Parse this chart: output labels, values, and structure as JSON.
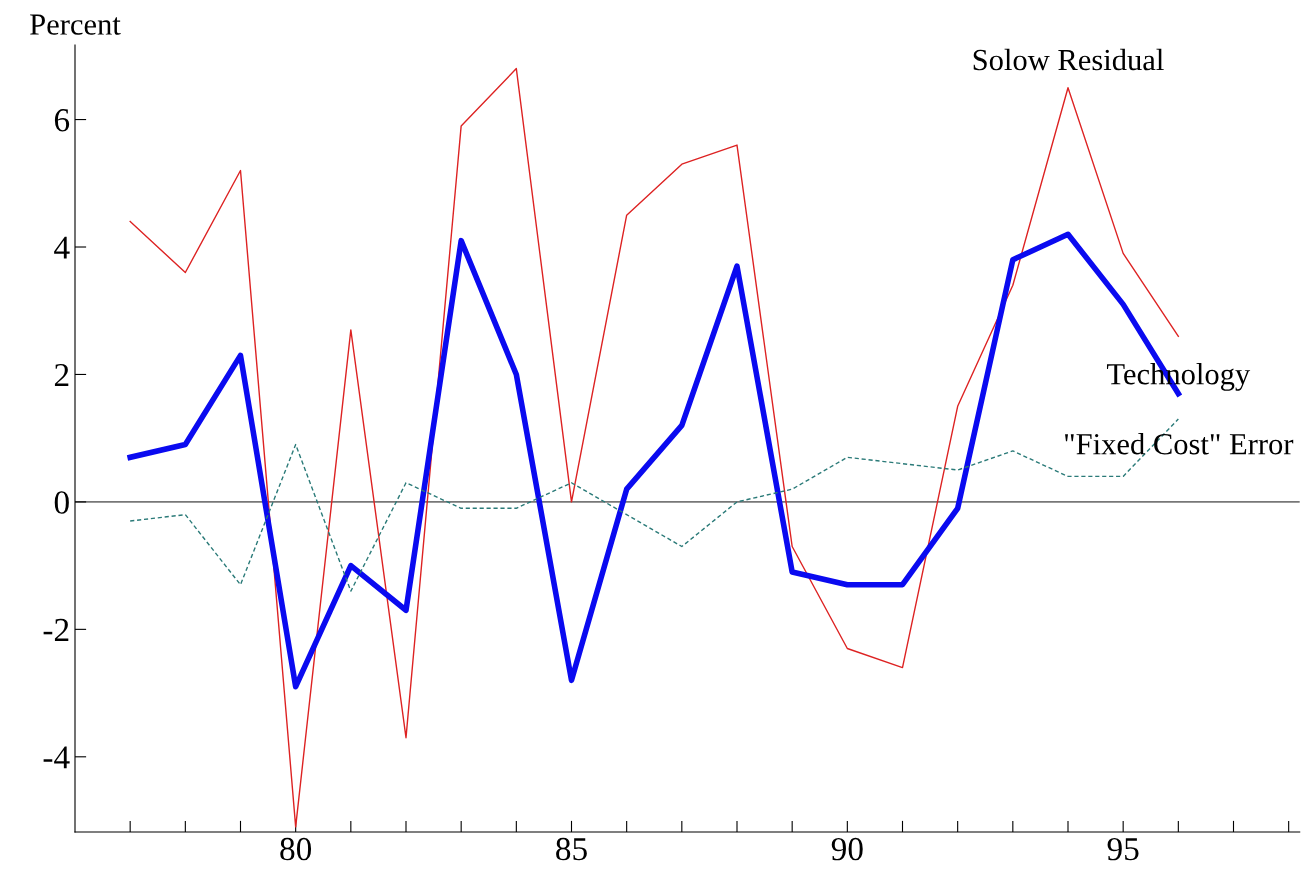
{
  "chart_data": {
    "type": "line",
    "ylabel": "Percent",
    "x": [
      77,
      78,
      79,
      80,
      81,
      82,
      83,
      84,
      85,
      86,
      87,
      88,
      89,
      90,
      91,
      92,
      93,
      94,
      95,
      96
    ],
    "series": [
      {
        "name": "Solow Residual",
        "color": "#dd2222",
        "line_style": "solid",
        "values": [
          4.4,
          3.6,
          5.2,
          -5.1,
          2.7,
          -3.7,
          5.9,
          6.8,
          0.0,
          4.5,
          5.3,
          5.6,
          -0.7,
          -2.3,
          -2.6,
          1.5,
          3.4,
          6.5,
          3.9,
          2.6
        ]
      },
      {
        "name": "Technology",
        "color": "#0a0af0",
        "line_style": "solid",
        "values": [
          0.7,
          0.9,
          2.3,
          -2.9,
          -1.0,
          -1.7,
          4.1,
          2.0,
          -2.8,
          0.2,
          1.2,
          3.7,
          -1.1,
          -1.3,
          -1.3,
          -0.1,
          3.8,
          4.2,
          3.1,
          1.7
        ]
      },
      {
        "name": "\"Fixed Cost\" Error",
        "color": "#2a7a78",
        "line_style": "dashed",
        "values": [
          -0.3,
          -0.2,
          -1.3,
          0.9,
          -1.4,
          0.3,
          -0.1,
          -0.1,
          0.3,
          -0.2,
          -0.7,
          0.0,
          0.2,
          0.7,
          0.6,
          0.5,
          0.8,
          0.4,
          0.4,
          1.3
        ]
      }
    ],
    "ref_lines": [
      {
        "axis": "y",
        "value": 0,
        "label": null,
        "color": "#777777",
        "line_style": "solid"
      }
    ],
    "xlim": [
      76,
      98.2
    ],
    "ylim": [
      -5.18,
      7.17
    ],
    "xticks": [
      {
        "value": 77,
        "label": null
      },
      {
        "value": 78,
        "label": null
      },
      {
        "value": 79,
        "label": null
      },
      80,
      {
        "value": 81,
        "label": null
      },
      {
        "value": 82,
        "label": null
      },
      {
        "value": 83,
        "label": null
      },
      {
        "value": 84,
        "label": null
      },
      85,
      {
        "value": 86,
        "label": null
      },
      {
        "value": 87,
        "label": null
      },
      {
        "value": 88,
        "label": null
      },
      {
        "value": 89,
        "label": null
      },
      90,
      {
        "value": 91,
        "label": null
      },
      {
        "value": 92,
        "label": null
      },
      {
        "value": 93,
        "label": null
      },
      {
        "value": 94,
        "label": null
      },
      95,
      {
        "value": 96,
        "label": null
      },
      {
        "value": 97,
        "label": null
      },
      {
        "value": 98,
        "label": null
      }
    ],
    "yticks": [
      -4,
      -2,
      0,
      2,
      4,
      6
    ],
    "grid": false,
    "legend": false,
    "marker": "none"
  }
}
